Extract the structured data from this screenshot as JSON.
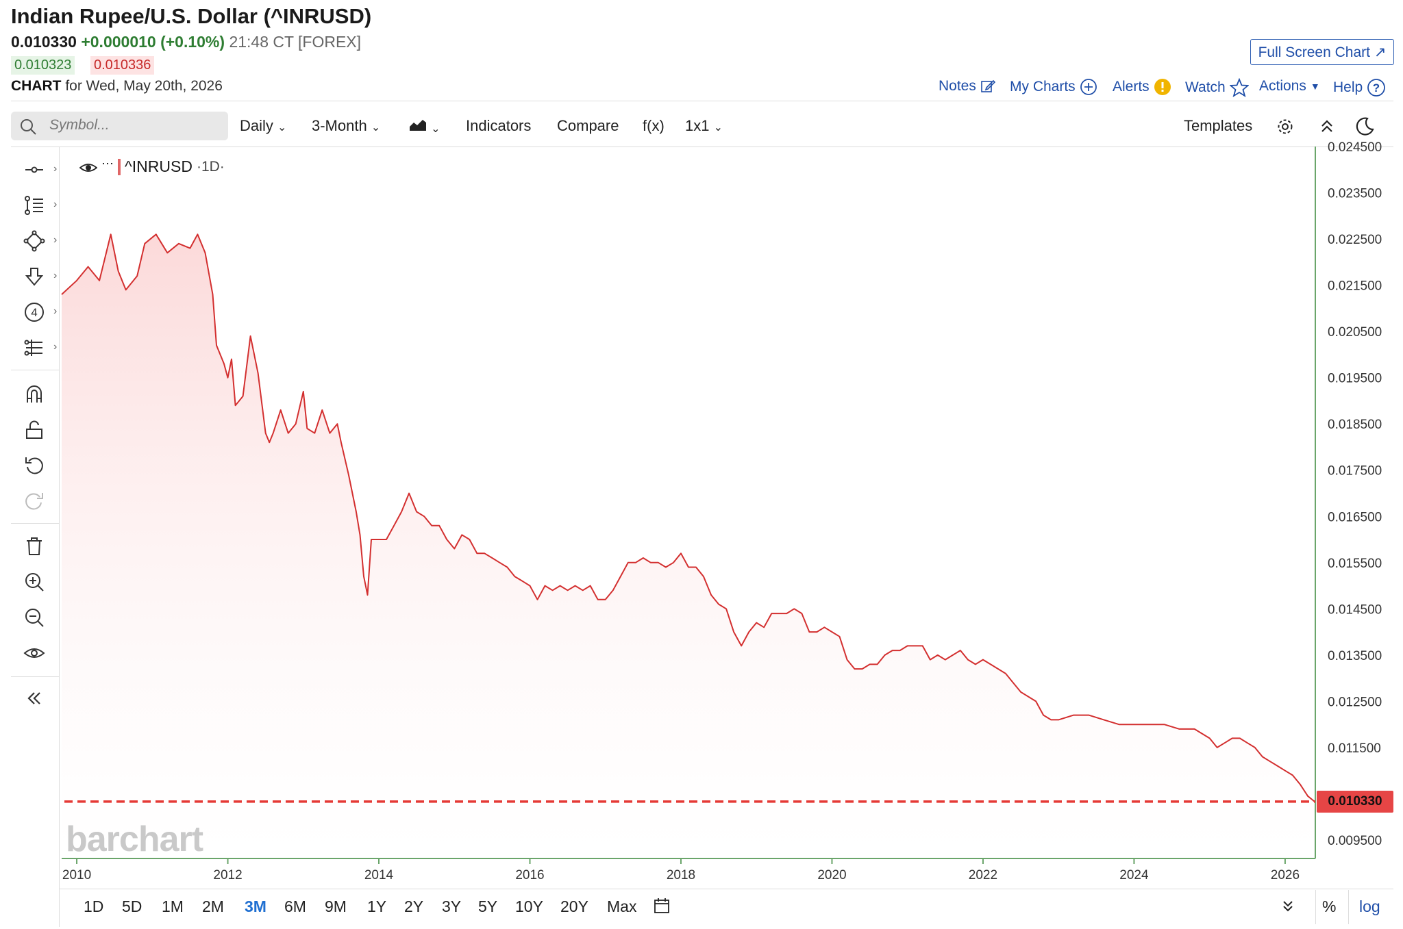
{
  "header": {
    "title": "Indian Rupee/U.S. Dollar (^INRUSD)",
    "last": "0.010330",
    "change": "+0.000010 (+0.10%)",
    "time": "21:48 CT [FOREX]",
    "bid": "0.010323",
    "ask": "0.010336",
    "chart_label": "CHART",
    "chart_for": "for Wed, May 20th, 2026",
    "full_screen": "Full Screen Chart"
  },
  "toplinks": [
    "Notes",
    "My Charts",
    "Alerts",
    "Watch",
    "Actions",
    "Help"
  ],
  "toolbar": {
    "search_placeholder": "Symbol...",
    "interval": "Daily",
    "period": "3-Month",
    "indicators": "Indicators",
    "compare": "Compare",
    "fx": "f(x)",
    "layout": "1x1",
    "templates": "Templates"
  },
  "legend": {
    "symbol": "^INRUSD",
    "interval": "·1D·"
  },
  "ranges": [
    "1D",
    "5D",
    "1M",
    "2M",
    "3M",
    "6M",
    "9M",
    "1Y",
    "2Y",
    "3Y",
    "5Y",
    "10Y",
    "20Y",
    "Max"
  ],
  "selected_range": "3M",
  "scale_options": [
    "%",
    "log"
  ],
  "watermark": "barchart",
  "last_price_label": "0.010330",
  "colors": {
    "line": "#d32f2f",
    "fill": "#fde4e4",
    "accent": "#1f4ea8",
    "positive": "#2e7d32",
    "negative": "#c62828"
  },
  "chart_data": {
    "type": "area",
    "title": "Indian Rupee/U.S. Dollar (^INRUSD)",
    "ylim": [
      0.0091,
      0.0245
    ],
    "xlim": [
      2009.8,
      2026.4
    ],
    "y_ticks": [
      "0.024500",
      "0.023500",
      "0.022500",
      "0.021500",
      "0.020500",
      "0.019500",
      "0.018500",
      "0.017500",
      "0.016500",
      "0.015500",
      "0.014500",
      "0.013500",
      "0.012500",
      "0.011500",
      "0.009500"
    ],
    "x_ticks": [
      "2010",
      "2012",
      "2014",
      "2016",
      "2018",
      "2020",
      "2022",
      "2024",
      "2026"
    ],
    "last_value": 0.01033,
    "series": [
      {
        "points": [
          [
            2009.8,
            0.0213
          ],
          [
            2010.0,
            0.0216
          ],
          [
            2010.15,
            0.0219
          ],
          [
            2010.3,
            0.0216
          ],
          [
            2010.45,
            0.0226
          ],
          [
            2010.55,
            0.0218
          ],
          [
            2010.65,
            0.0214
          ],
          [
            2010.8,
            0.0217
          ],
          [
            2010.9,
            0.0224
          ],
          [
            2011.05,
            0.0226
          ],
          [
            2011.2,
            0.0222
          ],
          [
            2011.35,
            0.0224
          ],
          [
            2011.5,
            0.0223
          ],
          [
            2011.6,
            0.0226
          ],
          [
            2011.7,
            0.0222
          ],
          [
            2011.8,
            0.0213
          ],
          [
            2011.85,
            0.0202
          ],
          [
            2011.95,
            0.0198
          ],
          [
            2012.0,
            0.0195
          ],
          [
            2012.05,
            0.0199
          ],
          [
            2012.1,
            0.0189
          ],
          [
            2012.2,
            0.0191
          ],
          [
            2012.3,
            0.0204
          ],
          [
            2012.4,
            0.0196
          ],
          [
            2012.5,
            0.0183
          ],
          [
            2012.55,
            0.0181
          ],
          [
            2012.6,
            0.0183
          ],
          [
            2012.7,
            0.0188
          ],
          [
            2012.8,
            0.0183
          ],
          [
            2012.9,
            0.0185
          ],
          [
            2013.0,
            0.0192
          ],
          [
            2013.05,
            0.0184
          ],
          [
            2013.15,
            0.0183
          ],
          [
            2013.25,
            0.0188
          ],
          [
            2013.35,
            0.0183
          ],
          [
            2013.45,
            0.0185
          ],
          [
            2013.5,
            0.0181
          ],
          [
            2013.6,
            0.0174
          ],
          [
            2013.7,
            0.0166
          ],
          [
            2013.75,
            0.0161
          ],
          [
            2013.8,
            0.0152
          ],
          [
            2013.85,
            0.0148
          ],
          [
            2013.9,
            0.016
          ],
          [
            2014.0,
            0.016
          ],
          [
            2014.1,
            0.016
          ],
          [
            2014.2,
            0.0163
          ],
          [
            2014.3,
            0.0166
          ],
          [
            2014.4,
            0.017
          ],
          [
            2014.5,
            0.0166
          ],
          [
            2014.6,
            0.0165
          ],
          [
            2014.7,
            0.0163
          ],
          [
            2014.8,
            0.0163
          ],
          [
            2014.9,
            0.016
          ],
          [
            2015.0,
            0.0158
          ],
          [
            2015.1,
            0.0161
          ],
          [
            2015.2,
            0.016
          ],
          [
            2015.3,
            0.0157
          ],
          [
            2015.4,
            0.0157
          ],
          [
            2015.5,
            0.0156
          ],
          [
            2015.6,
            0.0155
          ],
          [
            2015.7,
            0.0154
          ],
          [
            2015.8,
            0.0152
          ],
          [
            2015.9,
            0.0151
          ],
          [
            2016.0,
            0.015
          ],
          [
            2016.1,
            0.0147
          ],
          [
            2016.2,
            0.015
          ],
          [
            2016.3,
            0.0149
          ],
          [
            2016.4,
            0.015
          ],
          [
            2016.5,
            0.0149
          ],
          [
            2016.6,
            0.015
          ],
          [
            2016.7,
            0.0149
          ],
          [
            2016.8,
            0.015
          ],
          [
            2016.9,
            0.0147
          ],
          [
            2017.0,
            0.0147
          ],
          [
            2017.1,
            0.0149
          ],
          [
            2017.2,
            0.0152
          ],
          [
            2017.3,
            0.0155
          ],
          [
            2017.4,
            0.0155
          ],
          [
            2017.5,
            0.0156
          ],
          [
            2017.6,
            0.0155
          ],
          [
            2017.7,
            0.0155
          ],
          [
            2017.8,
            0.0154
          ],
          [
            2017.9,
            0.0155
          ],
          [
            2018.0,
            0.0157
          ],
          [
            2018.1,
            0.0154
          ],
          [
            2018.2,
            0.0154
          ],
          [
            2018.3,
            0.0152
          ],
          [
            2018.4,
            0.0148
          ],
          [
            2018.5,
            0.0146
          ],
          [
            2018.6,
            0.0145
          ],
          [
            2018.7,
            0.014
          ],
          [
            2018.8,
            0.0137
          ],
          [
            2018.9,
            0.014
          ],
          [
            2019.0,
            0.0142
          ],
          [
            2019.1,
            0.0141
          ],
          [
            2019.2,
            0.0144
          ],
          [
            2019.3,
            0.0144
          ],
          [
            2019.4,
            0.0144
          ],
          [
            2019.5,
            0.0145
          ],
          [
            2019.6,
            0.0144
          ],
          [
            2019.7,
            0.014
          ],
          [
            2019.8,
            0.014
          ],
          [
            2019.9,
            0.0141
          ],
          [
            2020.0,
            0.014
          ],
          [
            2020.1,
            0.0139
          ],
          [
            2020.2,
            0.0134
          ],
          [
            2020.3,
            0.0132
          ],
          [
            2020.4,
            0.0132
          ],
          [
            2020.5,
            0.0133
          ],
          [
            2020.6,
            0.0133
          ],
          [
            2020.7,
            0.0135
          ],
          [
            2020.8,
            0.0136
          ],
          [
            2020.9,
            0.0136
          ],
          [
            2021.0,
            0.0137
          ],
          [
            2021.1,
            0.0137
          ],
          [
            2021.2,
            0.0137
          ],
          [
            2021.3,
            0.0134
          ],
          [
            2021.4,
            0.0135
          ],
          [
            2021.5,
            0.0134
          ],
          [
            2021.6,
            0.0135
          ],
          [
            2021.7,
            0.0136
          ],
          [
            2021.8,
            0.0134
          ],
          [
            2021.9,
            0.0133
          ],
          [
            2022.0,
            0.0134
          ],
          [
            2022.1,
            0.0133
          ],
          [
            2022.2,
            0.0132
          ],
          [
            2022.3,
            0.0131
          ],
          [
            2022.4,
            0.0129
          ],
          [
            2022.5,
            0.0127
          ],
          [
            2022.6,
            0.0126
          ],
          [
            2022.7,
            0.0125
          ],
          [
            2022.8,
            0.0122
          ],
          [
            2022.9,
            0.0121
          ],
          [
            2023.0,
            0.0121
          ],
          [
            2023.2,
            0.0122
          ],
          [
            2023.4,
            0.0122
          ],
          [
            2023.6,
            0.0121
          ],
          [
            2023.8,
            0.012
          ],
          [
            2024.0,
            0.012
          ],
          [
            2024.2,
            0.012
          ],
          [
            2024.4,
            0.012
          ],
          [
            2024.6,
            0.0119
          ],
          [
            2024.8,
            0.0119
          ],
          [
            2025.0,
            0.0117
          ],
          [
            2025.1,
            0.0115
          ],
          [
            2025.2,
            0.0116
          ],
          [
            2025.3,
            0.0117
          ],
          [
            2025.4,
            0.0117
          ],
          [
            2025.5,
            0.0116
          ],
          [
            2025.6,
            0.0115
          ],
          [
            2025.7,
            0.0113
          ],
          [
            2025.8,
            0.0112
          ],
          [
            2025.9,
            0.0111
          ],
          [
            2026.0,
            0.011
          ],
          [
            2026.1,
            0.0109
          ],
          [
            2026.2,
            0.0107
          ],
          [
            2026.3,
            0.01045
          ],
          [
            2026.39,
            0.01033
          ]
        ]
      }
    ]
  }
}
